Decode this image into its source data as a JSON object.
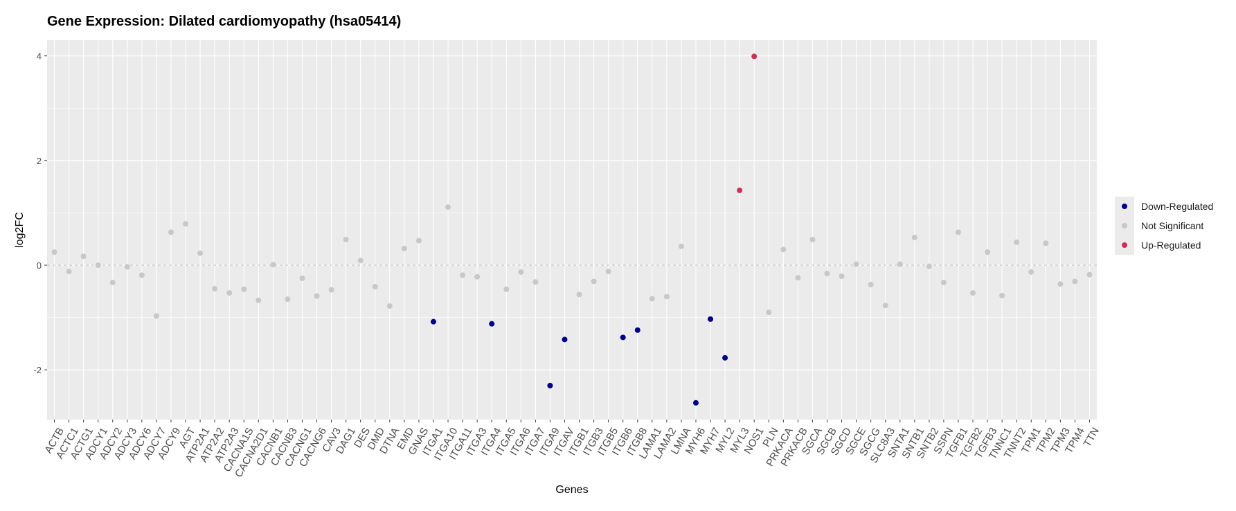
{
  "chart_data": {
    "type": "scatter",
    "title": "Gene Expression: Dilated cardiomyopathy (hsa05414)",
    "xlabel": "Genes",
    "ylabel": "log2FC",
    "ylim": [
      -2.95,
      4.3
    ],
    "yticks": [
      -2,
      0,
      2,
      4
    ],
    "grid": true,
    "reference_line": 0,
    "legend_position": "right",
    "colors": {
      "Down-Regulated": "#00008b",
      "Not Significant": "#c8c8c8",
      "Up-Regulated": "#cd2f5b",
      "panel_background": "#ebebeb",
      "gridline": "#ffffff"
    },
    "categories": [
      "ACTB",
      "ACTC1",
      "ACTG1",
      "ADCY1",
      "ADCY2",
      "ADCY3",
      "ADCY6",
      "ADCY7",
      "ADCY9",
      "AGT",
      "ATP2A1",
      "ATP2A2",
      "ATP2A3",
      "CACNA1S",
      "CACNA2D1",
      "CACNB1",
      "CACNB3",
      "CACNG1",
      "CACNG6",
      "CAV3",
      "DAG1",
      "DES",
      "DMD",
      "DTNA",
      "EMD",
      "GNAS",
      "ITGA1",
      "ITGA10",
      "ITGA11",
      "ITGA3",
      "ITGA4",
      "ITGA5",
      "ITGA6",
      "ITGA7",
      "ITGA9",
      "ITGAV",
      "ITGB1",
      "ITGB3",
      "ITGB5",
      "ITGB6",
      "ITGB8",
      "LAMA1",
      "LAMA2",
      "LMNA",
      "MYH6",
      "MYH7",
      "MYL2",
      "MYL3",
      "NOS1",
      "PLN",
      "PRKACA",
      "PRKACB",
      "SGCA",
      "SGCB",
      "SGCD",
      "SGCE",
      "SGCG",
      "SLC8A3",
      "SNTA1",
      "SNTB1",
      "SNTB2",
      "SSPN",
      "TGFB1",
      "TGFB2",
      "TGFB3",
      "TNNC1",
      "TNNT2",
      "TPM1",
      "TPM2",
      "TPM3",
      "TPM4",
      "TTN"
    ],
    "values": [
      0.25,
      -0.12,
      0.17,
      0.0,
      -0.33,
      -0.03,
      -0.19,
      -0.97,
      0.63,
      0.79,
      0.23,
      -0.45,
      -0.53,
      -0.46,
      -0.67,
      0.01,
      -0.65,
      -0.25,
      -0.59,
      -0.47,
      0.49,
      0.09,
      -0.41,
      -0.78,
      0.32,
      0.47,
      -1.08,
      1.11,
      -0.19,
      -0.22,
      -1.12,
      -0.46,
      -0.13,
      -0.32,
      -2.3,
      -1.42,
      -0.56,
      -0.31,
      -0.12,
      -1.38,
      -1.24,
      -0.64,
      -0.6,
      0.36,
      -2.63,
      -1.03,
      -1.77,
      1.43,
      3.99,
      -0.9,
      0.3,
      -0.24,
      0.49,
      -0.16,
      -0.21,
      0.02,
      -0.37,
      -0.77,
      0.02,
      0.53,
      -0.02,
      -0.33,
      0.63,
      -0.53,
      0.25,
      -0.58,
      0.44,
      -0.13,
      0.42,
      -0.36,
      -0.31,
      -0.18
    ],
    "status": [
      "Not Significant",
      "Not Significant",
      "Not Significant",
      "Not Significant",
      "Not Significant",
      "Not Significant",
      "Not Significant",
      "Not Significant",
      "Not Significant",
      "Not Significant",
      "Not Significant",
      "Not Significant",
      "Not Significant",
      "Not Significant",
      "Not Significant",
      "Not Significant",
      "Not Significant",
      "Not Significant",
      "Not Significant",
      "Not Significant",
      "Not Significant",
      "Not Significant",
      "Not Significant",
      "Not Significant",
      "Not Significant",
      "Not Significant",
      "Down-Regulated",
      "Not Significant",
      "Not Significant",
      "Not Significant",
      "Down-Regulated",
      "Not Significant",
      "Not Significant",
      "Not Significant",
      "Down-Regulated",
      "Down-Regulated",
      "Not Significant",
      "Not Significant",
      "Not Significant",
      "Down-Regulated",
      "Down-Regulated",
      "Not Significant",
      "Not Significant",
      "Not Significant",
      "Down-Regulated",
      "Down-Regulated",
      "Down-Regulated",
      "Up-Regulated",
      "Up-Regulated",
      "Not Significant",
      "Not Significant",
      "Not Significant",
      "Not Significant",
      "Not Significant",
      "Not Significant",
      "Not Significant",
      "Not Significant",
      "Not Significant",
      "Not Significant",
      "Not Significant",
      "Not Significant",
      "Not Significant",
      "Not Significant",
      "Not Significant",
      "Not Significant",
      "Not Significant",
      "Not Significant",
      "Not Significant",
      "Not Significant",
      "Not Significant",
      "Not Significant",
      "Not Significant"
    ],
    "legend": [
      "Down-Regulated",
      "Not Significant",
      "Up-Regulated"
    ]
  }
}
